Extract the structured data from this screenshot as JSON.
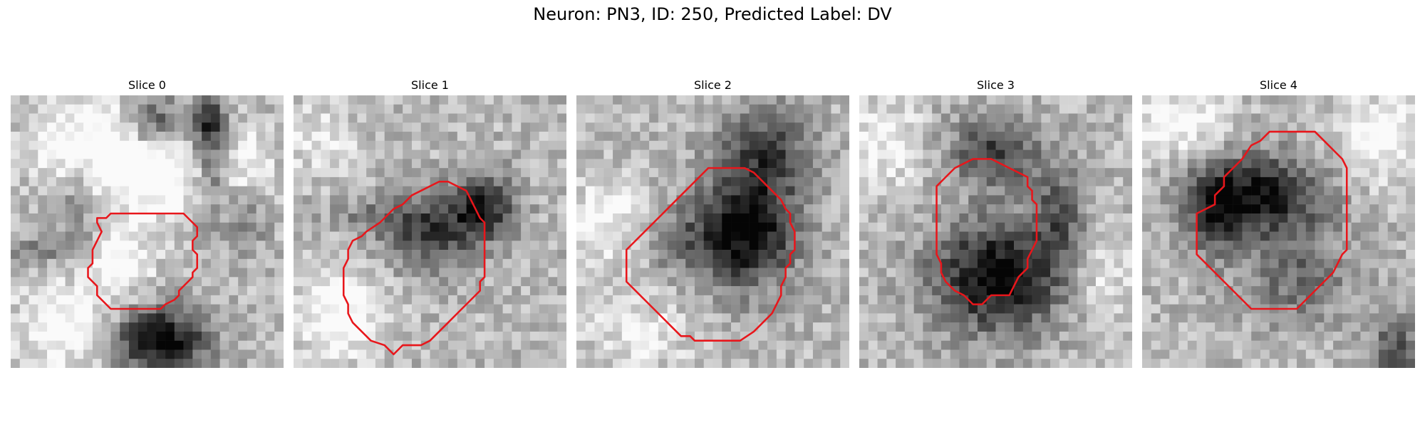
{
  "figure": {
    "title": "Neuron: PN3, ID: 250, Predicted Label: DV",
    "contour_color": "#e8161b"
  },
  "panels": [
    {
      "title": "Slice 0",
      "image": "grayscale microscopy patch, bright cell bodies with dark boundaries, red contour around central region"
    },
    {
      "title": "Slice 1",
      "image": "grayscale microscopy patch, dark cell body upper-right of contour"
    },
    {
      "title": "Slice 2",
      "image": "grayscale microscopy patch, large dark cell body inside contour"
    },
    {
      "title": "Slice 3",
      "image": "grayscale microscopy patch, dark cell body filling contour"
    },
    {
      "title": "Slice 4",
      "image": "grayscale microscopy patch, dark blob at top of contour"
    }
  ]
}
